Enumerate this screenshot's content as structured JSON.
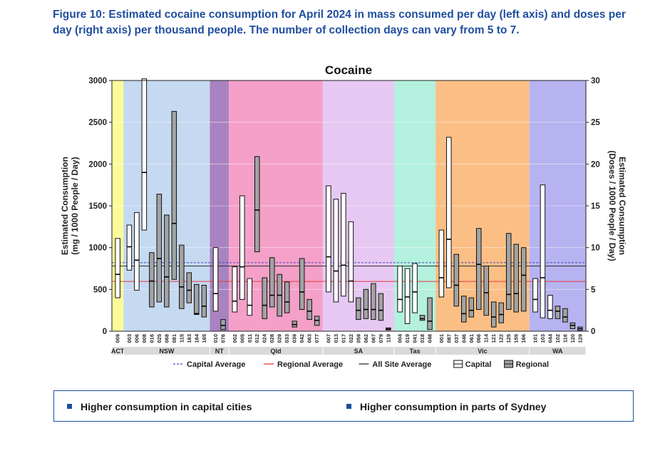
{
  "caption": "Figure 10: Estimated cocaine consumption for April 2024 in mass consumed per day (left axis) and doses per day (right axis) per thousand people. The number of collection days can vary from 5 to 7.",
  "callouts": [
    "Higher consumption in capital cities",
    "Higher consumption in parts of Sydney"
  ],
  "colors": {
    "ACT": "#fbfb9a",
    "NSW": "#c5d9f1",
    "NT": "#a983c1",
    "Qld": "#f4a0c8",
    "SA": "#e7c8f3",
    "Tas": "#b3f1de",
    "Vic": "#fbbf86",
    "WA": "#b7b3f1",
    "capital_avg": "#4a4ac7",
    "regional_avg": "#e23a3a",
    "all_avg": "#333333",
    "capital_box": "#ffffff",
    "regional_box": "#a3a3a3"
  },
  "chart_data": {
    "type": "box",
    "title": "Cocaine",
    "ylabel": "Estimated Consumption\n(mg / 1000 People / Day)",
    "y2label": "Estimated Consumption\n(Doses / 1000 People / Day)",
    "ylim": [
      0,
      3000
    ],
    "y2lim": [
      0,
      30
    ],
    "yticks": [
      0,
      500,
      1000,
      1500,
      2000,
      2500,
      3000
    ],
    "y2ticks": [
      0,
      5,
      10,
      15,
      20,
      25,
      30
    ],
    "references": {
      "capital_average": 820,
      "regional_average": 595,
      "all_site_average": 780
    },
    "legend": [
      "Capital Average",
      "Regional Average",
      "All Site Average",
      "Capital",
      "Regional"
    ],
    "legend_position": "bottom",
    "groups": [
      {
        "name": "ACT",
        "sites": [
          {
            "id": "009",
            "type": "capital",
            "low": 400,
            "median": 680,
            "high": 1110
          }
        ]
      },
      {
        "name": "NSW",
        "sites": [
          {
            "id": "003",
            "type": "capital",
            "low": 730,
            "median": 1010,
            "high": 1270
          },
          {
            "id": "006",
            "type": "capital",
            "low": 490,
            "median": 850,
            "high": 1420
          },
          {
            "id": "008",
            "type": "capital",
            "low": 1210,
            "median": 1900,
            "high": 3020
          },
          {
            "id": "016",
            "type": "regional",
            "low": 290,
            "median": 600,
            "high": 940
          },
          {
            "id": "025",
            "type": "regional",
            "low": 350,
            "median": 870,
            "high": 1640
          },
          {
            "id": "068",
            "type": "regional",
            "low": 290,
            "median": 650,
            "high": 1390
          },
          {
            "id": "081",
            "type": "regional",
            "low": 620,
            "median": 1290,
            "high": 2630
          },
          {
            "id": "115",
            "type": "regional",
            "low": 270,
            "median": 530,
            "high": 1030
          },
          {
            "id": "163",
            "type": "regional",
            "low": 340,
            "median": 490,
            "high": 700
          },
          {
            "id": "164",
            "type": "regional",
            "low": 200,
            "median": 210,
            "high": 560
          },
          {
            "id": "165",
            "type": "regional",
            "low": 170,
            "median": 300,
            "high": 550
          }
        ]
      },
      {
        "name": "NT",
        "sites": [
          {
            "id": "010",
            "type": "capital",
            "low": 240,
            "median": 450,
            "high": 1000
          },
          {
            "id": "076",
            "type": "regional",
            "low": 20,
            "median": 70,
            "high": 140
          }
        ]
      },
      {
        "name": "Qld",
        "sites": [
          {
            "id": "002",
            "type": "capital",
            "low": 230,
            "median": 360,
            "high": 770
          },
          {
            "id": "005",
            "type": "capital",
            "low": 380,
            "median": 770,
            "high": 1620
          },
          {
            "id": "011",
            "type": "capital",
            "low": 190,
            "median": 310,
            "high": 630
          },
          {
            "id": "012",
            "type": "regional",
            "low": 950,
            "median": 1450,
            "high": 2090
          },
          {
            "id": "024",
            "type": "regional",
            "low": 150,
            "median": 310,
            "high": 640
          },
          {
            "id": "028",
            "type": "regional",
            "low": 290,
            "median": 430,
            "high": 880
          },
          {
            "id": "029",
            "type": "regional",
            "low": 180,
            "median": 430,
            "high": 680
          },
          {
            "id": "033",
            "type": "regional",
            "low": 220,
            "median": 350,
            "high": 590
          },
          {
            "id": "039",
            "type": "regional",
            "low": 50,
            "median": 80,
            "high": 120
          },
          {
            "id": "042",
            "type": "regional",
            "low": 260,
            "median": 470,
            "high": 870
          },
          {
            "id": "063",
            "type": "regional",
            "low": 140,
            "median": 240,
            "high": 380
          },
          {
            "id": "077",
            "type": "regional",
            "low": 70,
            "median": 130,
            "high": 180
          }
        ]
      },
      {
        "name": "SA",
        "sites": [
          {
            "id": "007",
            "type": "capital",
            "low": 470,
            "median": 890,
            "high": 1740
          },
          {
            "id": "013",
            "type": "capital",
            "low": 350,
            "median": 720,
            "high": 1580
          },
          {
            "id": "017",
            "type": "capital",
            "low": 420,
            "median": 790,
            "high": 1650
          },
          {
            "id": "022",
            "type": "capital",
            "low": 350,
            "median": 600,
            "high": 1310
          },
          {
            "id": "059",
            "type": "regional",
            "low": 140,
            "median": 250,
            "high": 400
          },
          {
            "id": "062",
            "type": "regional",
            "low": 150,
            "median": 260,
            "high": 500
          },
          {
            "id": "067",
            "type": "regional",
            "low": 140,
            "median": 260,
            "high": 570
          },
          {
            "id": "079",
            "type": "regional",
            "low": 130,
            "median": 250,
            "high": 450
          },
          {
            "id": "119",
            "type": "regional",
            "low": 15,
            "median": 25,
            "high": 40
          }
        ]
      },
      {
        "name": "Tas",
        "sites": [
          {
            "id": "004",
            "type": "capital",
            "low": 230,
            "median": 380,
            "high": 780
          },
          {
            "id": "019",
            "type": "capital",
            "low": 90,
            "median": 410,
            "high": 750
          },
          {
            "id": "041",
            "type": "capital",
            "low": 220,
            "median": 470,
            "high": 810
          },
          {
            "id": "018",
            "type": "regional",
            "low": 130,
            "median": 150,
            "high": 190
          },
          {
            "id": "048",
            "type": "regional",
            "low": 20,
            "median": 120,
            "high": 400
          }
        ]
      },
      {
        "name": "Vic",
        "sites": [
          {
            "id": "001",
            "type": "capital",
            "low": 410,
            "median": 640,
            "high": 1210
          },
          {
            "id": "087",
            "type": "capital",
            "low": 520,
            "median": 1100,
            "high": 2320
          },
          {
            "id": "037",
            "type": "regional",
            "low": 300,
            "median": 550,
            "high": 920
          },
          {
            "id": "046",
            "type": "regional",
            "low": 110,
            "median": 210,
            "high": 420
          },
          {
            "id": "061",
            "type": "regional",
            "low": 170,
            "median": 250,
            "high": 400
          },
          {
            "id": "066",
            "type": "regional",
            "low": 260,
            "median": 800,
            "high": 1230
          },
          {
            "id": "114",
            "type": "regional",
            "low": 190,
            "median": 460,
            "high": 780
          },
          {
            "id": "121",
            "type": "regional",
            "low": 50,
            "median": 170,
            "high": 350
          },
          {
            "id": "122",
            "type": "regional",
            "low": 100,
            "median": 200,
            "high": 340
          },
          {
            "id": "125",
            "type": "regional",
            "low": 260,
            "median": 440,
            "high": 1170
          },
          {
            "id": "155",
            "type": "regional",
            "low": 230,
            "median": 450,
            "high": 1040
          },
          {
            "id": "166",
            "type": "regional",
            "low": 240,
            "median": 670,
            "high": 1000
          }
        ]
      },
      {
        "name": "WA",
        "sites": [
          {
            "id": "101",
            "type": "capital",
            "low": 230,
            "median": 380,
            "high": 630
          },
          {
            "id": "103",
            "type": "capital",
            "low": 160,
            "median": 640,
            "high": 1750
          },
          {
            "id": "044",
            "type": "capital",
            "low": 150,
            "median": 250,
            "high": 430
          },
          {
            "id": "102",
            "type": "regional",
            "low": 150,
            "median": 240,
            "high": 300
          },
          {
            "id": "116",
            "type": "regional",
            "low": 110,
            "median": 170,
            "high": 270
          },
          {
            "id": "120",
            "type": "regional",
            "low": 30,
            "median": 70,
            "high": 100
          },
          {
            "id": "129",
            "type": "regional",
            "low": 10,
            "median": 30,
            "high": 50
          }
        ]
      }
    ]
  }
}
